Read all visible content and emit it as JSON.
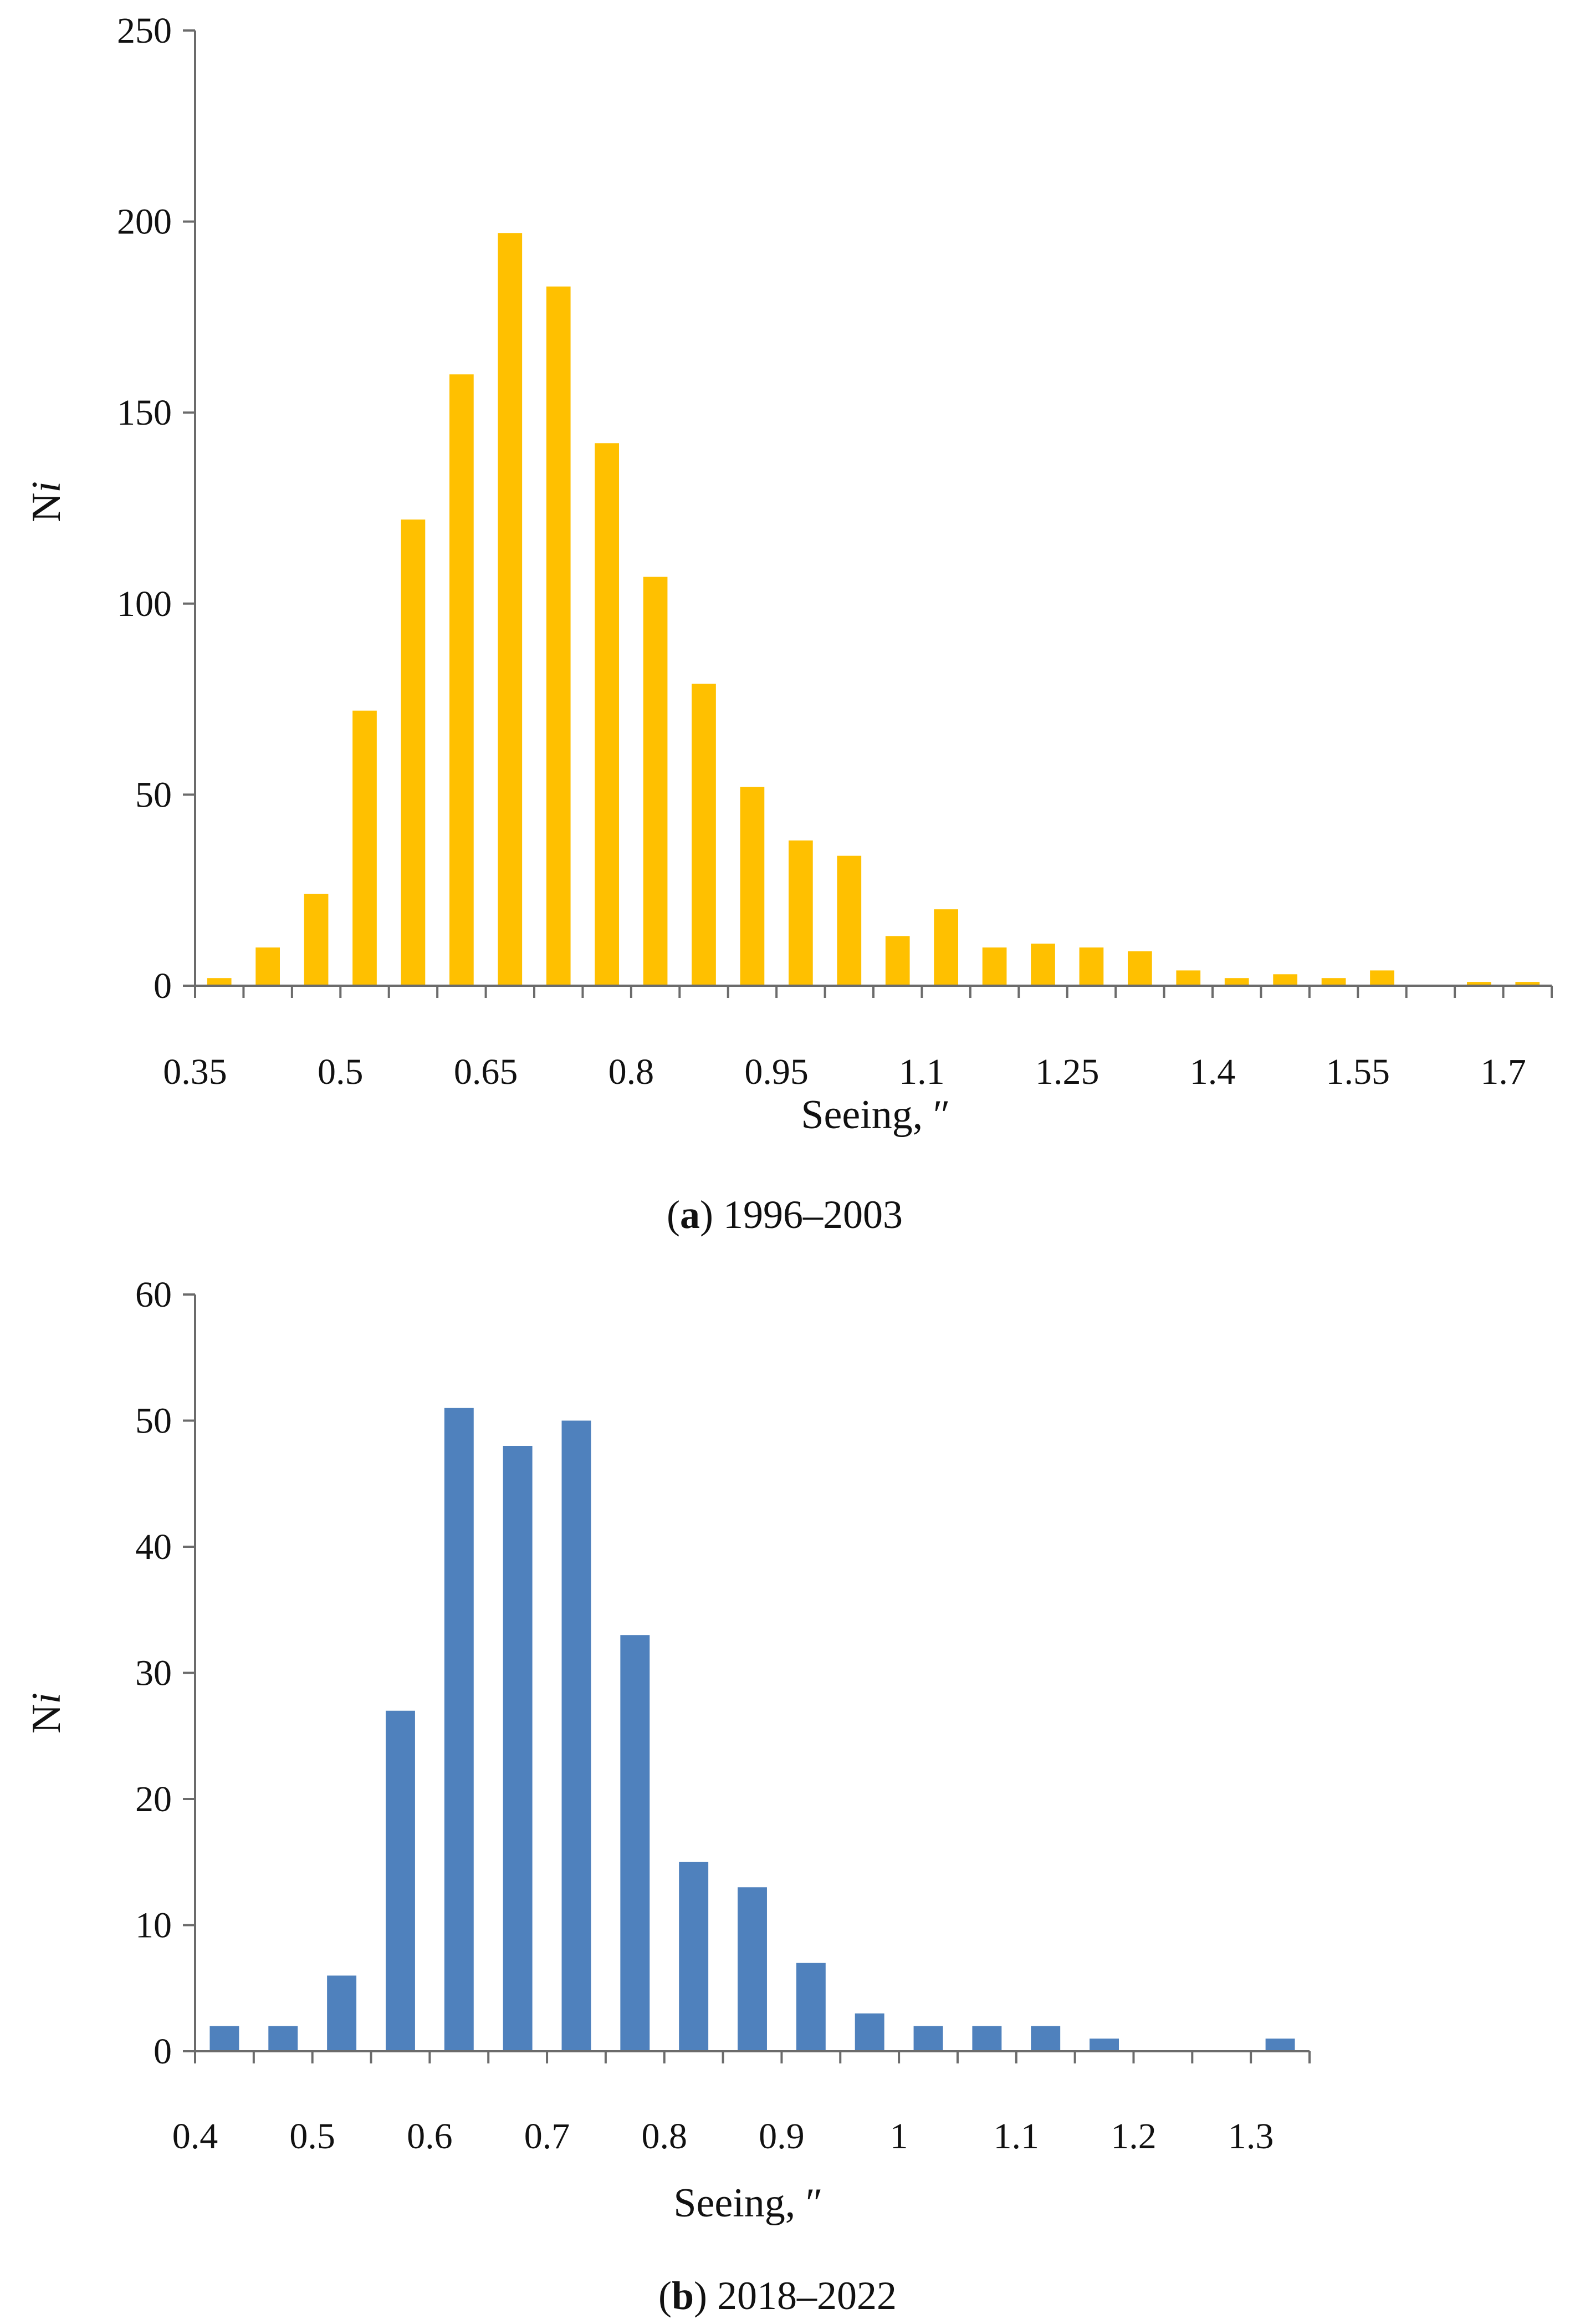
{
  "chart_data": [
    {
      "type": "bar",
      "panel_letter": "a",
      "caption_text": "1996–2003",
      "color": "#FFC000",
      "xlabel": "Seeing, ″",
      "ylabel_main": "N",
      "ylabel_sub": "i",
      "ylim": [
        0,
        250
      ],
      "yticks": [
        "0",
        "50",
        "100",
        "150",
        "200",
        "250"
      ],
      "xticks": [
        "0.35",
        "0.5",
        "0.65",
        "0.8",
        "0.95",
        "1.1",
        "1.25",
        "1.4",
        "1.55",
        "1.7"
      ],
      "bin_width": 0.05,
      "x": [
        0.35,
        0.4,
        0.45,
        0.5,
        0.55,
        0.6,
        0.65,
        0.7,
        0.75,
        0.8,
        0.85,
        0.9,
        0.95,
        1.0,
        1.05,
        1.1,
        1.15,
        1.2,
        1.25,
        1.3,
        1.35,
        1.4,
        1.45,
        1.5,
        1.55,
        1.6,
        1.65,
        1.7
      ],
      "values": [
        2,
        10,
        24,
        72,
        122,
        160,
        197,
        183,
        142,
        107,
        79,
        52,
        38,
        34,
        13,
        20,
        10,
        11,
        10,
        9,
        4,
        2,
        3,
        2,
        4,
        0,
        1,
        1
      ]
    },
    {
      "type": "bar",
      "panel_letter": "b",
      "caption_text": "2018–2022",
      "color": "#4F81BD",
      "xlabel": "Seeing, ″",
      "ylabel_main": "N",
      "ylabel_sub": "i",
      "ylim": [
        0,
        60
      ],
      "yticks": [
        "0",
        "10",
        "20",
        "30",
        "40",
        "50",
        "60"
      ],
      "xticks": [
        "0.4",
        "0.5",
        "0.6",
        "0.7",
        "0.8",
        "0.9",
        "1",
        "1.1",
        "1.2",
        "1.3"
      ],
      "bin_width": 0.05,
      "x": [
        0.4,
        0.45,
        0.5,
        0.55,
        0.6,
        0.65,
        0.7,
        0.75,
        0.8,
        0.85,
        0.9,
        0.95,
        1.0,
        1.05,
        1.1,
        1.15,
        1.2,
        1.25,
        1.3
      ],
      "values": [
        2,
        2,
        6,
        27,
        51,
        48,
        50,
        33,
        15,
        13,
        7,
        3,
        2,
        2,
        2,
        1,
        0,
        0,
        1
      ]
    }
  ]
}
